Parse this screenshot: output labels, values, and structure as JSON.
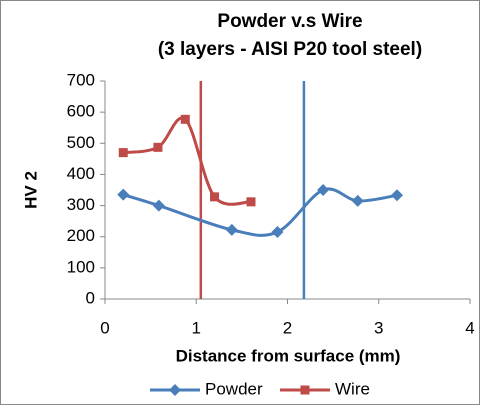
{
  "chart_data": {
    "type": "scatter",
    "title": "Powder v.s Wire",
    "subtitle": "(3 layers - AISI P20 tool steel)",
    "x_label": "Distance from surface (mm)",
    "y_label": "HV 2",
    "xlim": [
      0,
      4
    ],
    "xticks": [
      0,
      1,
      2,
      3,
      4
    ],
    "ylim": [
      0,
      700
    ],
    "yticks": [
      0,
      100,
      200,
      300,
      400,
      500,
      600,
      700
    ],
    "smooth": true,
    "legend": "bottom",
    "series": [
      {
        "name": "Powder",
        "color": "#4a7ebb",
        "marker": "diamond",
        "x": [
          0.2,
          0.59,
          1.39,
          1.89,
          2.39,
          2.77,
          3.2
        ],
        "values": [
          335,
          300,
          222,
          215,
          350,
          315,
          333
        ]
      },
      {
        "name": "Wire",
        "color": "#be4b48",
        "marker": "square",
        "x": [
          0.2,
          0.58,
          0.88,
          1.2,
          1.6
        ],
        "values": [
          470,
          487,
          577,
          328,
          312
        ]
      }
    ],
    "vlines": [
      {
        "x": 1.05,
        "color": "#be4b48"
      },
      {
        "x": 2.18,
        "color": "#4a7ebb"
      }
    ]
  }
}
